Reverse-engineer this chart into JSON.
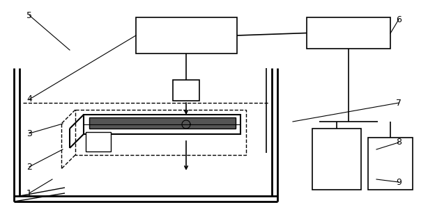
{
  "fig_width": 6.14,
  "fig_height": 2.95,
  "dpi": 100,
  "bg_color": "#ffffff",
  "line_color": "#000000",
  "lw": 1.0
}
